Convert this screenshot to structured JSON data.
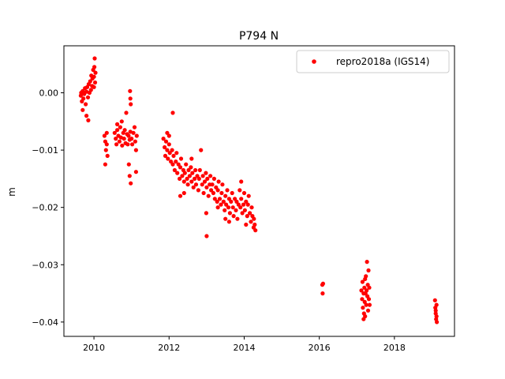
{
  "chart_data": {
    "type": "scatter",
    "title": "P794 N",
    "xlabel": "",
    "ylabel": "m",
    "xlim": [
      2009.2,
      2019.6
    ],
    "ylim": [
      -0.0425,
      0.0082
    ],
    "xticks": [
      2010,
      2012,
      2014,
      2016,
      2018
    ],
    "xtick_labels": [
      "2010",
      "2012",
      "2014",
      "2016",
      "2018"
    ],
    "yticks": [
      0.0,
      -0.01,
      -0.02,
      -0.03,
      -0.04
    ],
    "ytick_labels": [
      "0.00",
      "−0.01",
      "−0.02",
      "−0.03",
      "−0.04"
    ],
    "grid": false,
    "legend": {
      "position": "upper-right",
      "entries": [
        "repro2018a (IGS14)"
      ]
    },
    "series": [
      {
        "name": "repro2018a (IGS14)",
        "color": "#ff0000",
        "marker": "circle",
        "points": [
          [
            2009.65,
            -0.0005
          ],
          [
            2009.68,
            -0.0015
          ],
          [
            2009.7,
            0.0003
          ],
          [
            2009.72,
            -0.001
          ],
          [
            2009.74,
            -0.0002
          ],
          [
            2009.76,
            0.0008
          ],
          [
            2009.78,
            -0.002
          ],
          [
            2009.8,
            0.0002
          ],
          [
            2009.82,
            0.001
          ],
          [
            2009.84,
            -0.0008
          ],
          [
            2009.86,
            0.0015
          ],
          [
            2009.88,
            0.0
          ],
          [
            2009.9,
            0.002
          ],
          [
            2009.92,
            0.0005
          ],
          [
            2009.93,
            0.003
          ],
          [
            2009.95,
            0.0012
          ],
          [
            2009.96,
            0.0025
          ],
          [
            2009.98,
            0.004
          ],
          [
            2010.0,
            0.0028
          ],
          [
            2010.01,
            0.0045
          ],
          [
            2010.02,
            0.006
          ],
          [
            2010.03,
            0.0018
          ],
          [
            2010.04,
            0.0035
          ],
          [
            2009.7,
            -0.003
          ],
          [
            2009.8,
            -0.004
          ],
          [
            2009.85,
            -0.0048
          ],
          [
            2009.66,
            0.0
          ],
          [
            2010.0,
            0.001
          ],
          [
            2010.28,
            -0.0075
          ],
          [
            2010.3,
            -0.0085
          ],
          [
            2010.32,
            -0.01
          ],
          [
            2010.3,
            -0.0125
          ],
          [
            2010.34,
            -0.009
          ],
          [
            2010.36,
            -0.011
          ],
          [
            2010.34,
            -0.007
          ],
          [
            2010.55,
            -0.007
          ],
          [
            2010.58,
            -0.008
          ],
          [
            2010.6,
            -0.009
          ],
          [
            2010.62,
            -0.0065
          ],
          [
            2010.65,
            -0.0075
          ],
          [
            2010.68,
            -0.0085
          ],
          [
            2010.7,
            -0.006
          ],
          [
            2010.72,
            -0.0078
          ],
          [
            2010.75,
            -0.0092
          ],
          [
            2010.78,
            -0.007
          ],
          [
            2010.8,
            -0.008
          ],
          [
            2010.82,
            -0.0065
          ],
          [
            2010.84,
            -0.0088
          ],
          [
            2010.86,
            -0.0035
          ],
          [
            2010.88,
            -0.0072
          ],
          [
            2010.9,
            -0.009
          ],
          [
            2010.92,
            -0.0075
          ],
          [
            2010.95,
            -0.0082
          ],
          [
            2010.97,
            -0.0068
          ],
          [
            2011.0,
            -0.008
          ],
          [
            2011.02,
            -0.009
          ],
          [
            2011.05,
            -0.007
          ],
          [
            2011.08,
            -0.006
          ],
          [
            2011.1,
            -0.0085
          ],
          [
            2011.12,
            -0.01
          ],
          [
            2011.14,
            -0.0075
          ],
          [
            2010.96,
            0.0003
          ],
          [
            2010.97,
            -0.001
          ],
          [
            2010.98,
            -0.002
          ],
          [
            2010.93,
            -0.0125
          ],
          [
            2010.95,
            -0.0145
          ],
          [
            2010.98,
            -0.0158
          ],
          [
            2011.12,
            -0.0138
          ],
          [
            2010.62,
            -0.0055
          ],
          [
            2010.74,
            -0.005
          ],
          [
            2011.85,
            -0.008
          ],
          [
            2011.88,
            -0.0095
          ],
          [
            2011.9,
            -0.011
          ],
          [
            2011.92,
            -0.0085
          ],
          [
            2011.95,
            -0.01
          ],
          [
            2011.97,
            -0.0115
          ],
          [
            2012.0,
            -0.009
          ],
          [
            2012.02,
            -0.0105
          ],
          [
            2012.05,
            -0.012
          ],
          [
            2012.08,
            -0.01
          ],
          [
            2012.1,
            -0.0125
          ],
          [
            2012.12,
            -0.011
          ],
          [
            2012.15,
            -0.0135
          ],
          [
            2012.18,
            -0.012
          ],
          [
            2012.2,
            -0.0105
          ],
          [
            2012.22,
            -0.014
          ],
          [
            2012.25,
            -0.0125
          ],
          [
            2012.28,
            -0.015
          ],
          [
            2012.3,
            -0.013
          ],
          [
            2012.32,
            -0.0115
          ],
          [
            2012.35,
            -0.0145
          ],
          [
            2012.38,
            -0.0135
          ],
          [
            2012.4,
            -0.0155
          ],
          [
            2012.42,
            -0.014
          ],
          [
            2012.45,
            -0.0125
          ],
          [
            2012.48,
            -0.015
          ],
          [
            2012.5,
            -0.016
          ],
          [
            2012.52,
            -0.0135
          ],
          [
            2012.55,
            -0.0145
          ],
          [
            2012.58,
            -0.013
          ],
          [
            2012.6,
            -0.0155
          ],
          [
            2012.62,
            -0.014
          ],
          [
            2012.65,
            -0.0165
          ],
          [
            2012.68,
            -0.015
          ],
          [
            2012.7,
            -0.0135
          ],
          [
            2012.72,
            -0.016
          ],
          [
            2012.75,
            -0.0145
          ],
          [
            2012.78,
            -0.017
          ],
          [
            2012.8,
            -0.015
          ],
          [
            2012.82,
            -0.0135
          ],
          [
            2012.85,
            -0.01
          ],
          [
            2012.88,
            -0.016
          ],
          [
            2012.9,
            -0.0145
          ],
          [
            2012.92,
            -0.0175
          ],
          [
            2012.95,
            -0.0155
          ],
          [
            2012.98,
            -0.014
          ],
          [
            2013.0,
            -0.0165
          ],
          [
            2013.02,
            -0.015
          ],
          [
            2013.05,
            -0.018
          ],
          [
            2013.08,
            -0.016
          ],
          [
            2013.1,
            -0.0145
          ],
          [
            2013.12,
            -0.017
          ],
          [
            2012.1,
            -0.0035
          ],
          [
            2012.3,
            -0.018
          ],
          [
            2012.4,
            -0.0175
          ],
          [
            2012.0,
            -0.0075
          ],
          [
            2011.95,
            -0.007
          ],
          [
            2013.0,
            -0.025
          ],
          [
            2012.99,
            -0.021
          ],
          [
            2012.6,
            -0.0115
          ],
          [
            2013.15,
            -0.016
          ],
          [
            2013.18,
            -0.0175
          ],
          [
            2013.2,
            -0.015
          ],
          [
            2013.22,
            -0.0185
          ],
          [
            2013.25,
            -0.0165
          ],
          [
            2013.28,
            -0.019
          ],
          [
            2013.3,
            -0.017
          ],
          [
            2013.32,
            -0.0155
          ],
          [
            2013.35,
            -0.0185
          ],
          [
            2013.38,
            -0.0195
          ],
          [
            2013.4,
            -0.0175
          ],
          [
            2013.42,
            -0.016
          ],
          [
            2013.45,
            -0.019
          ],
          [
            2013.48,
            -0.0205
          ],
          [
            2013.5,
            -0.018
          ],
          [
            2013.52,
            -0.0195
          ],
          [
            2013.55,
            -0.017
          ],
          [
            2013.58,
            -0.02
          ],
          [
            2013.6,
            -0.0185
          ],
          [
            2013.62,
            -0.021
          ],
          [
            2013.65,
            -0.019
          ],
          [
            2013.68,
            -0.0175
          ],
          [
            2013.7,
            -0.02
          ],
          [
            2013.72,
            -0.0215
          ],
          [
            2013.75,
            -0.0185
          ],
          [
            2013.78,
            -0.0205
          ],
          [
            2013.8,
            -0.019
          ],
          [
            2013.82,
            -0.022
          ],
          [
            2013.85,
            -0.0195
          ],
          [
            2013.88,
            -0.017
          ],
          [
            2013.9,
            -0.02
          ],
          [
            2013.92,
            -0.0185
          ],
          [
            2013.95,
            -0.021
          ],
          [
            2013.98,
            -0.0195
          ],
          [
            2014.0,
            -0.0175
          ],
          [
            2014.02,
            -0.0205
          ],
          [
            2014.05,
            -0.019
          ],
          [
            2014.08,
            -0.0215
          ],
          [
            2014.1,
            -0.0195
          ],
          [
            2014.12,
            -0.018
          ],
          [
            2014.15,
            -0.021
          ],
          [
            2014.18,
            -0.0225
          ],
          [
            2014.2,
            -0.02
          ],
          [
            2014.22,
            -0.0215
          ],
          [
            2014.25,
            -0.0235
          ],
          [
            2014.26,
            -0.022
          ],
          [
            2014.28,
            -0.023
          ],
          [
            2014.3,
            -0.024
          ],
          [
            2013.6,
            -0.0225
          ],
          [
            2013.5,
            -0.022
          ],
          [
            2013.92,
            -0.0155
          ],
          [
            2014.05,
            -0.023
          ],
          [
            2013.3,
            -0.02
          ],
          [
            2016.08,
            -0.0335
          ],
          [
            2016.1,
            -0.0333
          ],
          [
            2016.09,
            -0.035
          ],
          [
            2017.12,
            -0.0345
          ],
          [
            2017.14,
            -0.036
          ],
          [
            2017.15,
            -0.033
          ],
          [
            2017.16,
            -0.0375
          ],
          [
            2017.18,
            -0.035
          ],
          [
            2017.19,
            -0.0385
          ],
          [
            2017.2,
            -0.034
          ],
          [
            2017.21,
            -0.0365
          ],
          [
            2017.22,
            -0.039
          ],
          [
            2017.23,
            -0.035
          ],
          [
            2017.24,
            -0.032
          ],
          [
            2017.25,
            -0.037
          ],
          [
            2017.26,
            -0.0345
          ],
          [
            2017.27,
            -0.0295
          ],
          [
            2017.28,
            -0.0355
          ],
          [
            2017.29,
            -0.0335
          ],
          [
            2017.3,
            -0.038
          ],
          [
            2017.31,
            -0.031
          ],
          [
            2017.32,
            -0.036
          ],
          [
            2017.33,
            -0.034
          ],
          [
            2017.34,
            -0.037
          ],
          [
            2017.22,
            -0.0325
          ],
          [
            2017.18,
            -0.0395
          ],
          [
            2019.08,
            -0.0362
          ],
          [
            2019.09,
            -0.0375
          ],
          [
            2019.1,
            -0.0385
          ],
          [
            2019.11,
            -0.0395
          ],
          [
            2019.12,
            -0.037
          ],
          [
            2019.13,
            -0.04
          ],
          [
            2019.1,
            -0.038
          ],
          [
            2019.12,
            -0.039
          ]
        ]
      }
    ]
  }
}
